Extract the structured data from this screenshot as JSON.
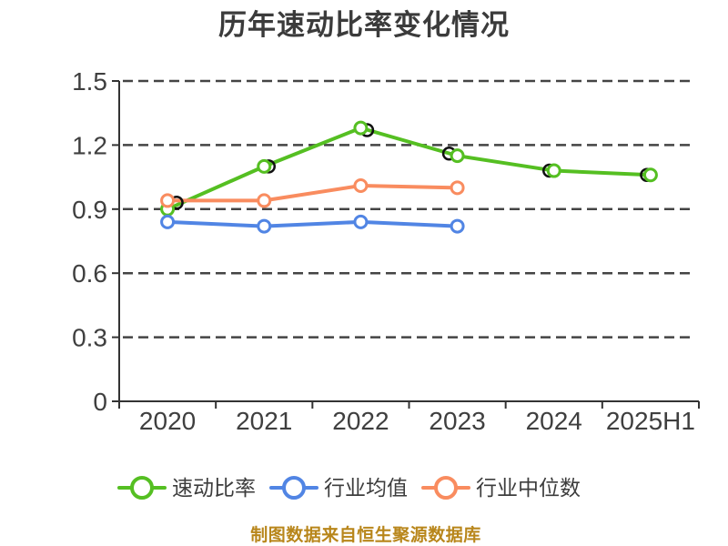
{
  "title": {
    "text": "历年速动比率变化情况"
  },
  "source_note": {
    "text": "制图数据来自恒生聚源数据库"
  },
  "colors": {
    "title": "#3b3b3b",
    "axis_line": "#333333",
    "grid_line": "#444444",
    "axis_label": "#3f3f3f",
    "legend_label": "#3d3d3d",
    "source": "#b8861b",
    "marker_fill": "#ffffff",
    "emphasis_ring": "#111111",
    "background": "#ffffff"
  },
  "chart_data": {
    "type": "line",
    "title": "历年速动比率变化情况",
    "categories": [
      "2020",
      "2021",
      "2022",
      "2023",
      "2024",
      "2025H1"
    ],
    "series": [
      {
        "name": "速动比率",
        "color": "#55bf22",
        "values": [
          0.9,
          1.1,
          1.28,
          1.15,
          1.08,
          1.06
        ]
      },
      {
        "name": "行业均值",
        "color": "#5185e4",
        "values": [
          0.84,
          0.82,
          0.84,
          0.82,
          null,
          null
        ]
      },
      {
        "name": "行业中位数",
        "color": "#f98c5f",
        "values": [
          0.94,
          0.94,
          1.01,
          1.0,
          null,
          null
        ]
      }
    ],
    "ylim": [
      0,
      1.5
    ],
    "yticks": [
      0,
      0.3,
      0.6,
      0.9,
      1.2,
      1.5
    ],
    "ytick_labels": [
      "0",
      "0.3",
      "0.6",
      "0.9",
      "1.2",
      "1.5"
    ],
    "grid": "dashed-horizontal",
    "legend_position": "bottom",
    "marker": "hollow-circle",
    "emphasis_rings": [
      {
        "category_index": 0,
        "dx": 10,
        "value": 0.93
      },
      {
        "category_index": 1,
        "dx": 5,
        "value": 1.1
      },
      {
        "category_index": 2,
        "dx": 7,
        "value": 1.27
      },
      {
        "category_index": 3,
        "dx": -9,
        "value": 1.16
      },
      {
        "category_index": 4,
        "dx": -5,
        "value": 1.08
      },
      {
        "category_index": 5,
        "dx": -4,
        "value": 1.06
      }
    ]
  }
}
